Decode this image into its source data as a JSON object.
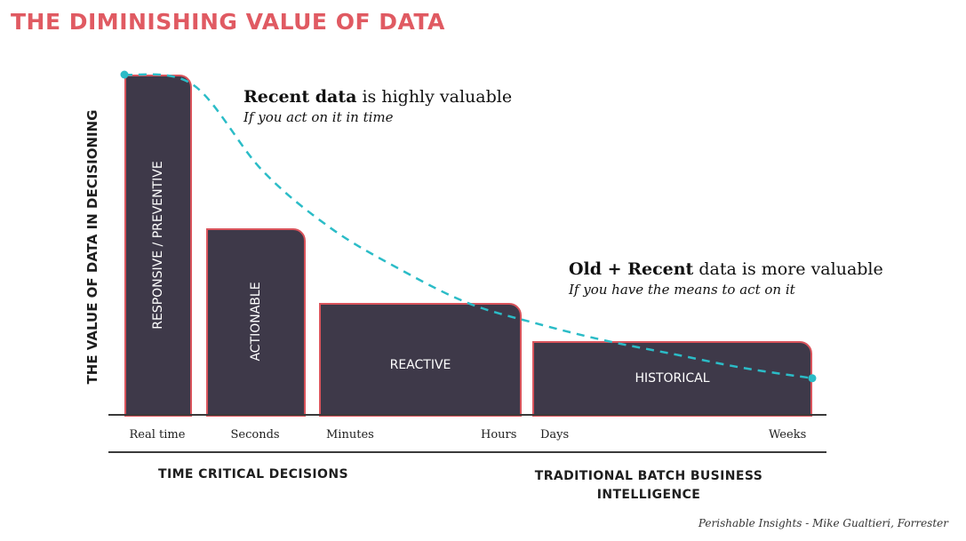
{
  "title": "THE DIMINISHING VALUE OF DATA",
  "ylabel": "THE VALUE OF DATA IN DECISIONING",
  "source": "Perishable Insights - Mike Gualtieri, Forrester",
  "annotations": [
    {
      "bold": "Recent data",
      "rest": " is highly valuable",
      "sub": "If you act on it in time"
    },
    {
      "bold": "Old + Recent",
      "rest": " data is more valuable",
      "sub": "If you have the means to act on it"
    }
  ],
  "groups": [
    {
      "label": "TIME CRITICAL DECISIONS"
    },
    {
      "label": "TRADITIONAL BATCH BUSINESS INTELLIGENCE"
    }
  ],
  "colors": {
    "bar_fill": "#3e3949",
    "bar_border": "#d9545c",
    "title": "#e05a62",
    "curve": "#2bbcc7"
  },
  "chart_data": {
    "type": "bar",
    "x_ticks": [
      "Real time",
      "Seconds",
      "Minutes",
      "Hours",
      "Days",
      "Weeks"
    ],
    "categories": [
      "RESPONSIVE / PREVENTIVE",
      "ACTIONABLE",
      "REACTIVE",
      "HISTORICAL"
    ],
    "bar_spans": [
      [
        "Real time",
        "Real time"
      ],
      [
        "Seconds",
        "Seconds"
      ],
      [
        "Minutes",
        "Hours"
      ],
      [
        "Days",
        "Weeks"
      ]
    ],
    "values": [
      1.0,
      0.55,
      0.33,
      0.22
    ],
    "label_orientation": [
      "vertical",
      "vertical",
      "horizontal",
      "horizontal"
    ],
    "curve": {
      "style": "dashed",
      "color": "#2bbcc7",
      "points": [
        1.0,
        0.97,
        0.72,
        0.55,
        0.43,
        0.33,
        0.27,
        0.22,
        0.18,
        0.14,
        0.11
      ]
    },
    "xlabel": "",
    "ylabel": "THE VALUE OF DATA IN DECISIONING",
    "ylim": [
      0,
      1
    ],
    "grid": false,
    "legend": "none"
  }
}
